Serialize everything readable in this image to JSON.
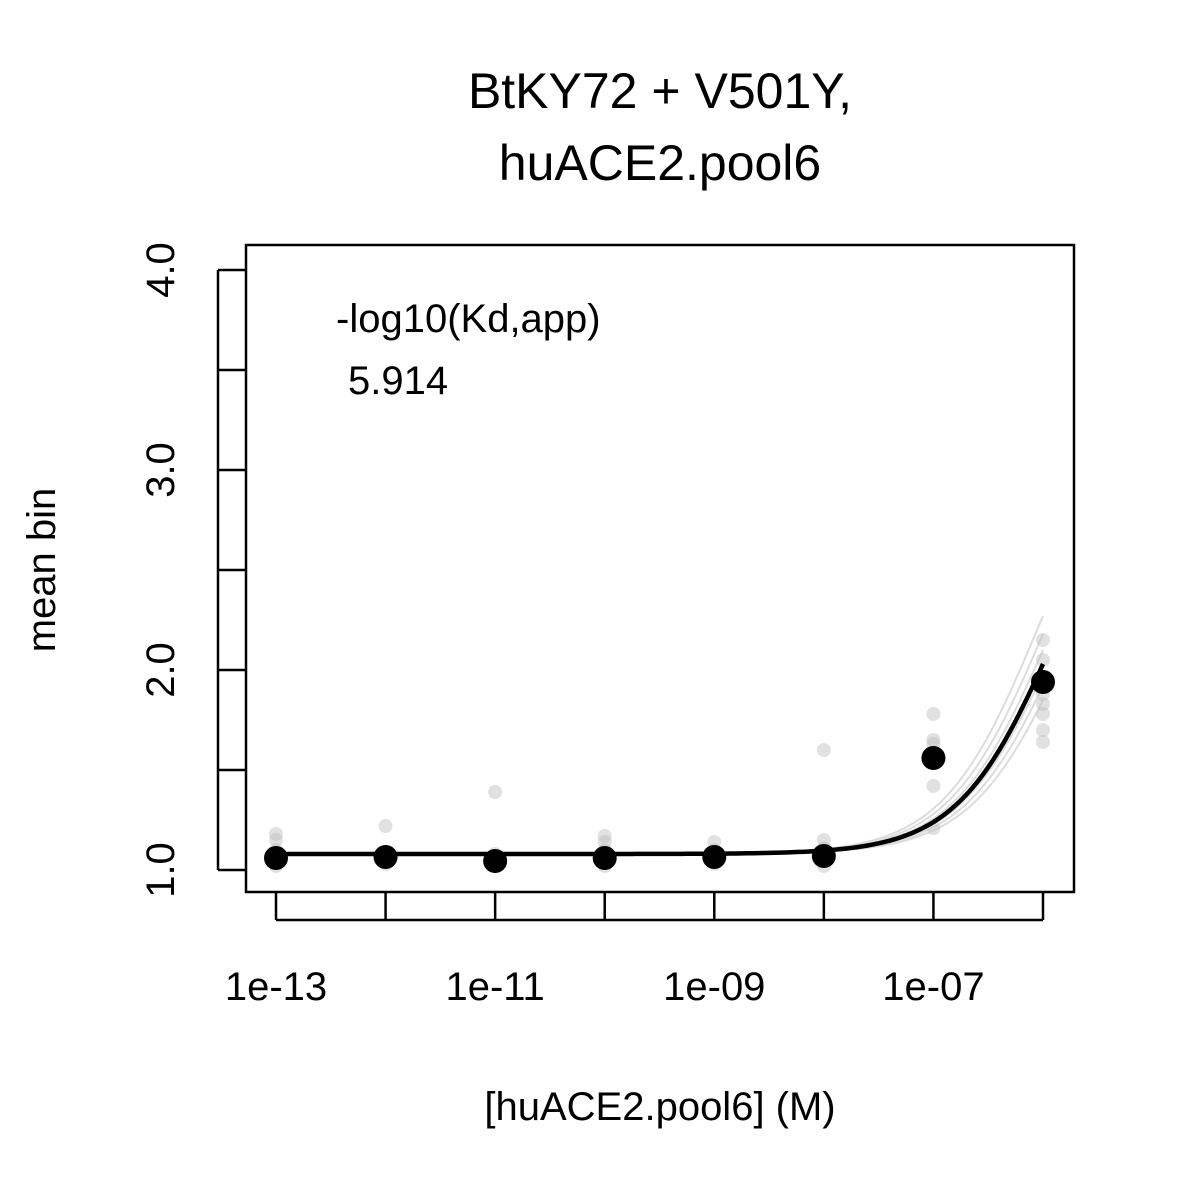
{
  "chart_data": {
    "type": "scatter",
    "title_line1": "BtKY72 + V501Y,",
    "title_line2": "huACE2.pool6",
    "xlabel": "[huACE2.pool6] (M)",
    "ylabel": "mean bin",
    "x_scale": "log10",
    "xlim": [
      1e-13,
      1e-06
    ],
    "ylim": [
      1.0,
      4.0
    ],
    "x_ticks": [
      {
        "value": 1e-13,
        "label": "1e-13"
      },
      {
        "value": 1e-12,
        "label": ""
      },
      {
        "value": 1e-11,
        "label": "1e-11"
      },
      {
        "value": 1e-10,
        "label": ""
      },
      {
        "value": 1e-09,
        "label": "1e-09"
      },
      {
        "value": 1e-08,
        "label": ""
      },
      {
        "value": 1e-07,
        "label": "1e-07"
      },
      {
        "value": 1e-06,
        "label": ""
      }
    ],
    "y_ticks": [
      {
        "value": 1.0,
        "label": "1.0"
      },
      {
        "value": 1.5,
        "label": ""
      },
      {
        "value": 2.0,
        "label": "2.0"
      },
      {
        "value": 2.5,
        "label": ""
      },
      {
        "value": 3.0,
        "label": "3.0"
      },
      {
        "value": 3.5,
        "label": ""
      },
      {
        "value": 4.0,
        "label": "4.0"
      }
    ],
    "annotation_label": "-log10(Kd,app)",
    "annotation_value": "5.914",
    "grid": false,
    "series": [
      {
        "role": "mean",
        "color": "#000000",
        "points": [
          {
            "x": 1e-13,
            "y": 1.06
          },
          {
            "x": 1e-12,
            "y": 1.065
          },
          {
            "x": 1e-11,
            "y": 1.045
          },
          {
            "x": 1e-10,
            "y": 1.06
          },
          {
            "x": 1e-09,
            "y": 1.065
          },
          {
            "x": 1e-08,
            "y": 1.07
          },
          {
            "x": 1e-07,
            "y": 1.56
          },
          {
            "x": 1e-06,
            "y": 1.94
          }
        ],
        "fit": {
          "log10_kd": -5.914,
          "baseline": 1.08,
          "top": 4.0,
          "y_at_max": 2.03
        }
      },
      {
        "role": "replicates",
        "color": "#bdbdbd",
        "points": [
          {
            "x": 1e-13,
            "y": 1.02
          },
          {
            "x": 1e-13,
            "y": 1.1
          },
          {
            "x": 1e-13,
            "y": 1.15
          },
          {
            "x": 1e-13,
            "y": 1.18
          },
          {
            "x": 1e-12,
            "y": 1.03
          },
          {
            "x": 1e-12,
            "y": 1.08
          },
          {
            "x": 1e-12,
            "y": 1.22
          },
          {
            "x": 1e-11,
            "y": 1.02
          },
          {
            "x": 1e-11,
            "y": 1.08
          },
          {
            "x": 1e-11,
            "y": 1.39
          },
          {
            "x": 1e-10,
            "y": 1.02
          },
          {
            "x": 1e-10,
            "y": 1.1
          },
          {
            "x": 1e-10,
            "y": 1.14
          },
          {
            "x": 1e-10,
            "y": 1.17
          },
          {
            "x": 1e-09,
            "y": 1.03
          },
          {
            "x": 1e-09,
            "y": 1.1
          },
          {
            "x": 1e-09,
            "y": 1.14
          },
          {
            "x": 1e-08,
            "y": 1.02
          },
          {
            "x": 1e-08,
            "y": 1.11
          },
          {
            "x": 1e-08,
            "y": 1.15
          },
          {
            "x": 1e-08,
            "y": 1.6
          },
          {
            "x": 1e-07,
            "y": 1.21
          },
          {
            "x": 1e-07,
            "y": 1.42
          },
          {
            "x": 1e-07,
            "y": 1.58
          },
          {
            "x": 1e-07,
            "y": 1.63
          },
          {
            "x": 1e-07,
            "y": 1.65
          },
          {
            "x": 1e-07,
            "y": 1.78
          },
          {
            "x": 1e-06,
            "y": 1.64
          },
          {
            "x": 1e-06,
            "y": 1.7
          },
          {
            "x": 1e-06,
            "y": 1.78
          },
          {
            "x": 1e-06,
            "y": 1.83
          },
          {
            "x": 1e-06,
            "y": 1.88
          },
          {
            "x": 1e-06,
            "y": 1.96
          },
          {
            "x": 1e-06,
            "y": 2.05
          },
          {
            "x": 1e-06,
            "y": 2.15
          }
        ],
        "fits": [
          {
            "log10_kd": -5.8,
            "y_at_max": 1.85
          },
          {
            "log10_kd": -5.85,
            "y_at_max": 1.92
          },
          {
            "log10_kd": -5.95,
            "y_at_max": 2.1
          },
          {
            "log10_kd": -6.0,
            "y_at_max": 2.18
          },
          {
            "log10_kd": -6.05,
            "y_at_max": 2.27
          },
          {
            "log10_kd": -5.9,
            "y_at_max": 1.98
          }
        ]
      }
    ]
  }
}
